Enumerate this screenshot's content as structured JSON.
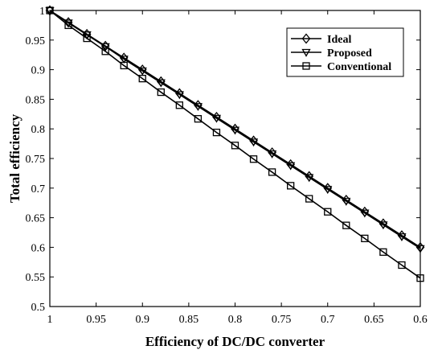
{
  "chart_data": {
    "type": "line",
    "title": "",
    "xlabel": "Efficiency of DC/DC converter",
    "ylabel": "Total efficiency",
    "xlim": [
      1,
      0.6
    ],
    "ylim": [
      0.5,
      1
    ],
    "x_reversed": true,
    "grid": false,
    "legend_position": "top-right",
    "x_ticks": [
      "1",
      "0.95",
      "0.9",
      "0.85",
      "0.8",
      "0.75",
      "0.7",
      "0.65",
      "0.6"
    ],
    "x_tick_values": [
      1,
      0.95,
      0.9,
      0.85,
      0.8,
      0.75,
      0.7,
      0.65,
      0.6
    ],
    "y_ticks": [
      "0.5",
      "0.55",
      "0.6",
      "0.65",
      "0.7",
      "0.75",
      "0.8",
      "0.85",
      "0.9",
      "0.95",
      "1"
    ],
    "y_tick_values": [
      0.5,
      0.55,
      0.6,
      0.65,
      0.7,
      0.75,
      0.8,
      0.85,
      0.9,
      0.95,
      1
    ],
    "x": [
      1,
      0.98,
      0.96,
      0.94,
      0.92,
      0.9,
      0.88,
      0.86,
      0.84,
      0.82,
      0.8,
      0.78,
      0.76,
      0.74,
      0.72,
      0.7,
      0.68,
      0.66,
      0.64,
      0.62,
      0.6
    ],
    "series": [
      {
        "name": "Ideal",
        "marker": "diamond",
        "color": "#000000",
        "values": [
          1,
          0.98,
          0.96,
          0.94,
          0.92,
          0.9,
          0.88,
          0.86,
          0.84,
          0.82,
          0.8,
          0.78,
          0.76,
          0.74,
          0.72,
          0.7,
          0.68,
          0.66,
          0.64,
          0.62,
          0.6
        ]
      },
      {
        "name": "Proposed",
        "marker": "triangle-down",
        "color": "#000000",
        "values": [
          1,
          0.979,
          0.959,
          0.939,
          0.918,
          0.898,
          0.878,
          0.858,
          0.838,
          0.818,
          0.798,
          0.778,
          0.758,
          0.738,
          0.718,
          0.698,
          0.678,
          0.658,
          0.638,
          0.618,
          0.598
        ]
      },
      {
        "name": "Conventional",
        "marker": "square",
        "color": "#000000",
        "values": [
          1,
          0.975,
          0.953,
          0.931,
          0.907,
          0.885,
          0.862,
          0.84,
          0.817,
          0.794,
          0.772,
          0.749,
          0.727,
          0.704,
          0.682,
          0.66,
          0.637,
          0.615,
          0.592,
          0.57,
          0.548
        ]
      }
    ]
  }
}
